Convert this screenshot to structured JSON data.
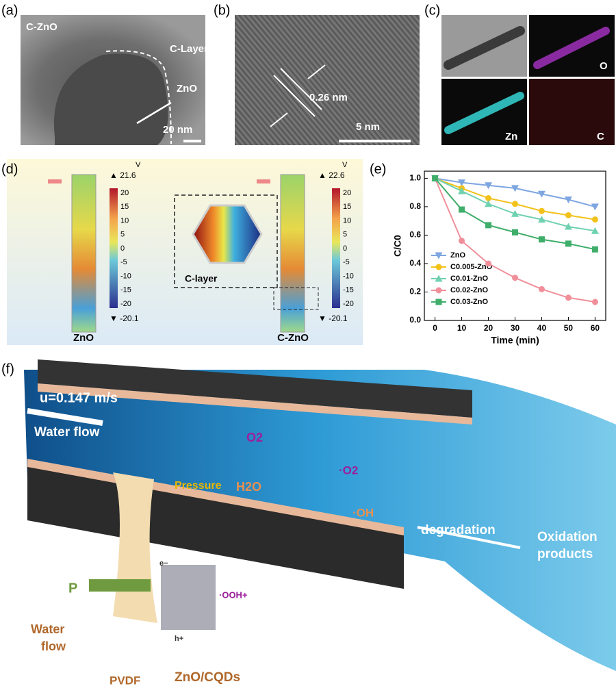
{
  "panels": {
    "a": {
      "label": "(a)",
      "texts": [
        "C-ZnO",
        "C-Layer",
        "ZnO",
        "20 nm"
      ]
    },
    "b": {
      "label": "(b)",
      "texts": [
        "0.26 nm",
        "5 nm"
      ]
    },
    "c": {
      "label": "(c)",
      "texts": [
        "O",
        "Zn",
        "C"
      ]
    },
    "d": {
      "label": "(d)",
      "unit": "V",
      "max_left": "21.6",
      "max_right": "22.6",
      "min_left": "-20.1",
      "min_right": "-20.1",
      "colorbar_ticks": [
        20,
        15,
        10,
        5,
        0,
        -5,
        -10,
        -15,
        -20
      ],
      "texts": [
        "ZnO",
        "C-ZnO",
        "C-layer"
      ]
    },
    "e": {
      "label": "(e)"
    },
    "f": {
      "label": "(f)",
      "texts": [
        "u=0.147 m/s",
        "Water flow",
        "Pressure",
        "O2",
        "·O2",
        "H2O",
        "·OH",
        "degradation",
        "Oxidation",
        "products",
        "P",
        "Water",
        "flow",
        "PVDF",
        "ZnO/CQDs",
        "·OOH+",
        "e−",
        "h+"
      ]
    }
  },
  "chart_data": {
    "type": "line",
    "xlabel": "Time (min)",
    "ylabel": "C/C0",
    "x": [
      0,
      10,
      20,
      30,
      40,
      50,
      60
    ],
    "xlim": [
      -4,
      64
    ],
    "xticks": [
      0,
      10,
      20,
      30,
      40,
      50,
      60
    ],
    "ylim": [
      0,
      1.05
    ],
    "yticks": [
      {
        "value": 0,
        "label": "0.0"
      },
      0.2,
      0.4,
      0.6,
      0.8,
      {
        "value": 1,
        "label": "1.0"
      }
    ],
    "legend": "lower left",
    "series": [
      {
        "name": "ZnO",
        "color": "#7ea6e0",
        "marker": "v",
        "values": [
          1.0,
          0.97,
          0.95,
          0.93,
          0.89,
          0.85,
          0.8
        ]
      },
      {
        "name": "C0.005-ZnO",
        "color": "#f2c21b",
        "marker": "o",
        "values": [
          1.0,
          0.93,
          0.86,
          0.82,
          0.77,
          0.74,
          0.71
        ]
      },
      {
        "name": "C0.01-ZnO",
        "color": "#6fd1b0",
        "marker": "^",
        "values": [
          1.0,
          0.91,
          0.82,
          0.75,
          0.71,
          0.66,
          0.63
        ]
      },
      {
        "name": "C0.02-ZnO",
        "color": "#f08f9a",
        "marker": "o",
        "values": [
          1.0,
          0.56,
          0.4,
          0.3,
          0.22,
          0.16,
          0.13
        ]
      },
      {
        "name": "C0.03-ZnO",
        "color": "#3fae6a",
        "marker": "s",
        "values": [
          1.0,
          0.78,
          0.67,
          0.62,
          0.57,
          0.54,
          0.5
        ]
      }
    ]
  }
}
